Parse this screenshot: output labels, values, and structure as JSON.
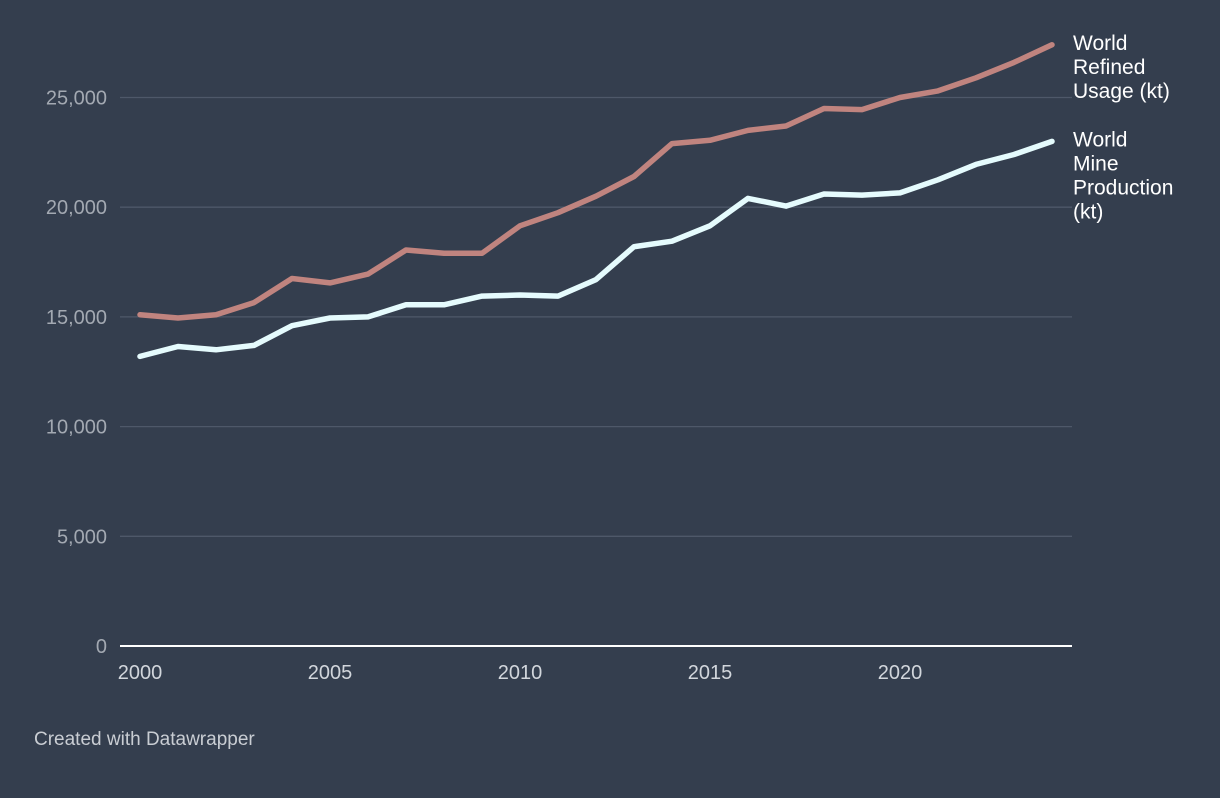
{
  "chart_data": {
    "type": "line",
    "title": "",
    "xlabel": "",
    "ylabel": "",
    "x": [
      2000,
      2001,
      2002,
      2003,
      2004,
      2005,
      2006,
      2007,
      2008,
      2009,
      2010,
      2011,
      2012,
      2013,
      2014,
      2015,
      2016,
      2017,
      2018,
      2019,
      2020,
      2021,
      2022,
      2023,
      2024
    ],
    "xlim": [
      2000,
      2024
    ],
    "ylim": [
      0,
      27500
    ],
    "x_ticks": [
      2000,
      2005,
      2010,
      2015,
      2020
    ],
    "x_tick_labels": [
      "2000",
      "2005",
      "2010",
      "2015",
      "2020"
    ],
    "y_ticks": [
      0,
      5000,
      10000,
      15000,
      20000,
      25000
    ],
    "y_tick_labels": [
      "0",
      "5,000",
      "10,000",
      "15,000",
      "20,000",
      "25,000"
    ],
    "grid": true,
    "legend": "direct labels at line ends (right)",
    "series": [
      {
        "name": "World Refined Usage (kt)",
        "label_lines": [
          "World",
          "Refined",
          "Usage (kt)"
        ],
        "color": "#c0847f",
        "values": [
          15100,
          14950,
          15100,
          15650,
          16750,
          16550,
          16950,
          18050,
          17900,
          17900,
          19150,
          19750,
          20500,
          21400,
          22900,
          23050,
          23500,
          23700,
          24500,
          24450,
          25000,
          25300,
          25900,
          26600,
          27400
        ]
      },
      {
        "name": "World Mine Production (kt)",
        "label_lines": [
          "World",
          "Mine",
          "Production",
          "(kt)"
        ],
        "color": "#e5fbfd",
        "values": [
          13200,
          13650,
          13500,
          13700,
          14600,
          14950,
          15000,
          15550,
          15550,
          15950,
          16000,
          15950,
          16700,
          18200,
          18450,
          19150,
          20400,
          20050,
          20600,
          20550,
          20650,
          21250,
          21950,
          22400,
          23000
        ]
      }
    ]
  },
  "colors": {
    "background": "#343e4e",
    "gridline": "#4e5869",
    "baseline": "#ffffff",
    "tick_text": "#a3a9b2"
  },
  "footer": {
    "credit": "Created with Datawrapper"
  }
}
